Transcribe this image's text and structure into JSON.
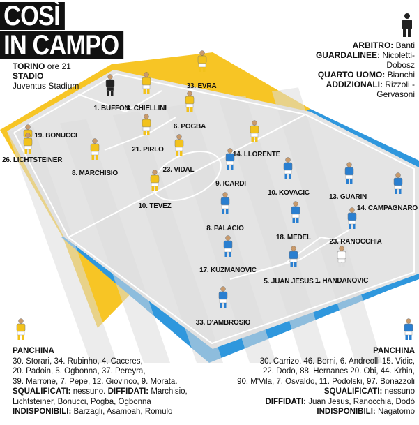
{
  "title": {
    "line1": "COSÌ",
    "line2": "IN CAMPO"
  },
  "match": {
    "city": "TORINO",
    "time": "ore 21",
    "stadium_label": "STADIO",
    "stadium": "Juventus Stadium"
  },
  "officials": {
    "referee_label": "ARBITRO:",
    "referee": "Banti",
    "linesmen_label": "GUARDALINEE:",
    "linesmen_1": "Nicoletti-",
    "linesmen_2": "Dobosz",
    "fourth_label": "QUARTO UOMO:",
    "fourth": "Bianchi",
    "additional_label": "ADDIZIONALI:",
    "additional_1": "Rizzoli -",
    "additional_2": "Gervasoni"
  },
  "colors": {
    "juve_kit": "#f2c21c",
    "inter_kit": "#2a7fd0",
    "field_light": "#ececec",
    "field_dark": "#dcdcdc",
    "border_yellow": "#f7c525",
    "border_blue": "#2f97dd"
  },
  "home_players": [
    {
      "label": "1. BUFFON",
      "kit": "gk"
    },
    {
      "label": "3. CHIELLINI",
      "kit": "home"
    },
    {
      "label": "33. EVRA",
      "kit": "home"
    },
    {
      "label": "19. BONUCCI",
      "kit": "home"
    },
    {
      "label": "6. POGBA",
      "kit": "home"
    },
    {
      "label": "26. LICHTSTEINER",
      "kit": "home"
    },
    {
      "label": "21. PIRLO",
      "kit": "home"
    },
    {
      "label": "8. MARCHISIO",
      "kit": "home"
    },
    {
      "label": "23. VIDAL",
      "kit": "home"
    },
    {
      "label": "14. LLORENTE",
      "kit": "home"
    },
    {
      "label": "10. TEVEZ",
      "kit": "home"
    }
  ],
  "away_players": [
    {
      "label": "9. ICARDI",
      "kit": "away"
    },
    {
      "label": "10. KOVACIC",
      "kit": "away"
    },
    {
      "label": "13. GUARIN",
      "kit": "away"
    },
    {
      "label": "14. CAMPAGNARO",
      "kit": "away"
    },
    {
      "label": "8. PALACIO",
      "kit": "away"
    },
    {
      "label": "18. MEDEL",
      "kit": "away"
    },
    {
      "label": "23. RANOCCHIA",
      "kit": "away"
    },
    {
      "label": "17. KUZMANOVIC",
      "kit": "away"
    },
    {
      "label": "5. JUAN JESUS",
      "kit": "away"
    },
    {
      "label": "1. HANDANOVIC",
      "kit": "gk_white"
    },
    {
      "label": "33. D'AMBROSIO",
      "kit": "away"
    }
  ],
  "home_bench": {
    "title": "PANCHINA",
    "line1": "30. Storari, 34. Rubinho, 4. Caceres,",
    "line2": "20. Padoin, 5. Ogbonna, 37. Pereyra,",
    "line3": "39. Marrone, 7. Pepe, 12. Giovinco, 9. Morata.",
    "susp_label": "SQUALIFICATI:",
    "susp": "nessuno.",
    "warned_label": "DIFFIDATI:",
    "warned_1": "Marchisio,",
    "warned_2": "Lichtsteiner, Bonucci, Pogba, Ogbonna",
    "unavail_label": "INDISPONIBILI:",
    "unavail": "Barzagli, Asamoah, Romulo"
  },
  "away_bench": {
    "title": "PANCHINA",
    "line1": "30. Carrizo, 46. Berni, 6. Andreolli 15. Vidic,",
    "line2": "22. Dodo, 88. Hernanes 20. Obi, 44. Krhin,",
    "line3": "90. M'Vila, 7. Osvaldo, 11. Podolski, 97. Bonazzoli",
    "susp_label": "SQUALIFICATI:",
    "susp": "nessuno",
    "warned_label": "DIFFIDATI:",
    "warned": "Juan Jesus, Ranocchia, Dodò",
    "unavail_label": "INDISPONIBILI:",
    "unavail": "Nagatomo"
  }
}
